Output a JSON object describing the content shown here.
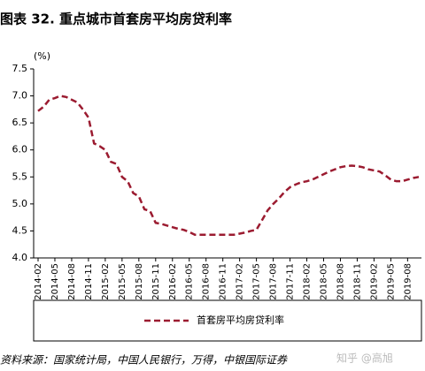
{
  "chart_data": {
    "type": "line",
    "title": "图表 32. 重点城市首套房平均房贷利率",
    "y_unit": "(%)",
    "categories": [
      "2014-02",
      null,
      null,
      "2014-05",
      null,
      null,
      "2014-08",
      null,
      null,
      "2014-11",
      null,
      null,
      "2015-02",
      null,
      null,
      "2015-05",
      null,
      null,
      "2015-08",
      null,
      null,
      "2015-11",
      null,
      null,
      "2016-02",
      null,
      null,
      "2016-05",
      null,
      null,
      "2016-08",
      null,
      null,
      "2016-11",
      null,
      null,
      "2017-02",
      null,
      null,
      "2017-05",
      null,
      null,
      "2017-08",
      null,
      null,
      "2017-11",
      null,
      null,
      "2018-02",
      null,
      null,
      "2018-05",
      null,
      null,
      "2018-08",
      null,
      null,
      "2018-11",
      null,
      null,
      "2019-02",
      null,
      null,
      "2019-05",
      null,
      null,
      "2019-08",
      null,
      null
    ],
    "series": [
      {
        "name": "首套房平均房贷利率",
        "color": "#9b1b30",
        "dashed": true,
        "values": [
          6.72,
          6.8,
          6.93,
          6.96,
          7.0,
          6.98,
          6.93,
          6.88,
          6.75,
          6.6,
          6.12,
          6.07,
          6.0,
          5.78,
          5.74,
          5.5,
          5.42,
          5.2,
          5.14,
          4.9,
          4.87,
          4.65,
          4.63,
          4.6,
          4.57,
          4.54,
          4.52,
          4.48,
          4.43,
          4.43,
          4.43,
          4.43,
          4.43,
          4.43,
          4.43,
          4.43,
          4.45,
          4.47,
          4.5,
          4.52,
          4.7,
          4.88,
          5.0,
          5.1,
          5.22,
          5.31,
          5.36,
          5.4,
          5.42,
          5.45,
          5.5,
          5.55,
          5.6,
          5.64,
          5.68,
          5.7,
          5.71,
          5.7,
          5.68,
          5.64,
          5.62,
          5.6,
          5.53,
          5.45,
          5.42,
          5.42,
          5.45,
          5.48,
          5.5
        ]
      }
    ],
    "ylim": [
      4.0,
      7.5
    ],
    "yticks": [
      {
        "value": 4,
        "label": "4.0"
      },
      {
        "value": 4.5,
        "label": "4.5"
      },
      {
        "value": 5,
        "label": "5.0"
      },
      {
        "value": 5.5,
        "label": "5.5"
      },
      {
        "value": 6,
        "label": "6.0"
      },
      {
        "value": 6.5,
        "label": "6.5"
      },
      {
        "value": 7,
        "label": "7.0"
      },
      {
        "value": 7.5,
        "label": "7.5"
      }
    ],
    "grid": false,
    "legend": "bottom",
    "source": "资料来源：国家统计局，中国人民银行，万得，中银国际证券",
    "watermark": "知乎 @高旭"
  }
}
